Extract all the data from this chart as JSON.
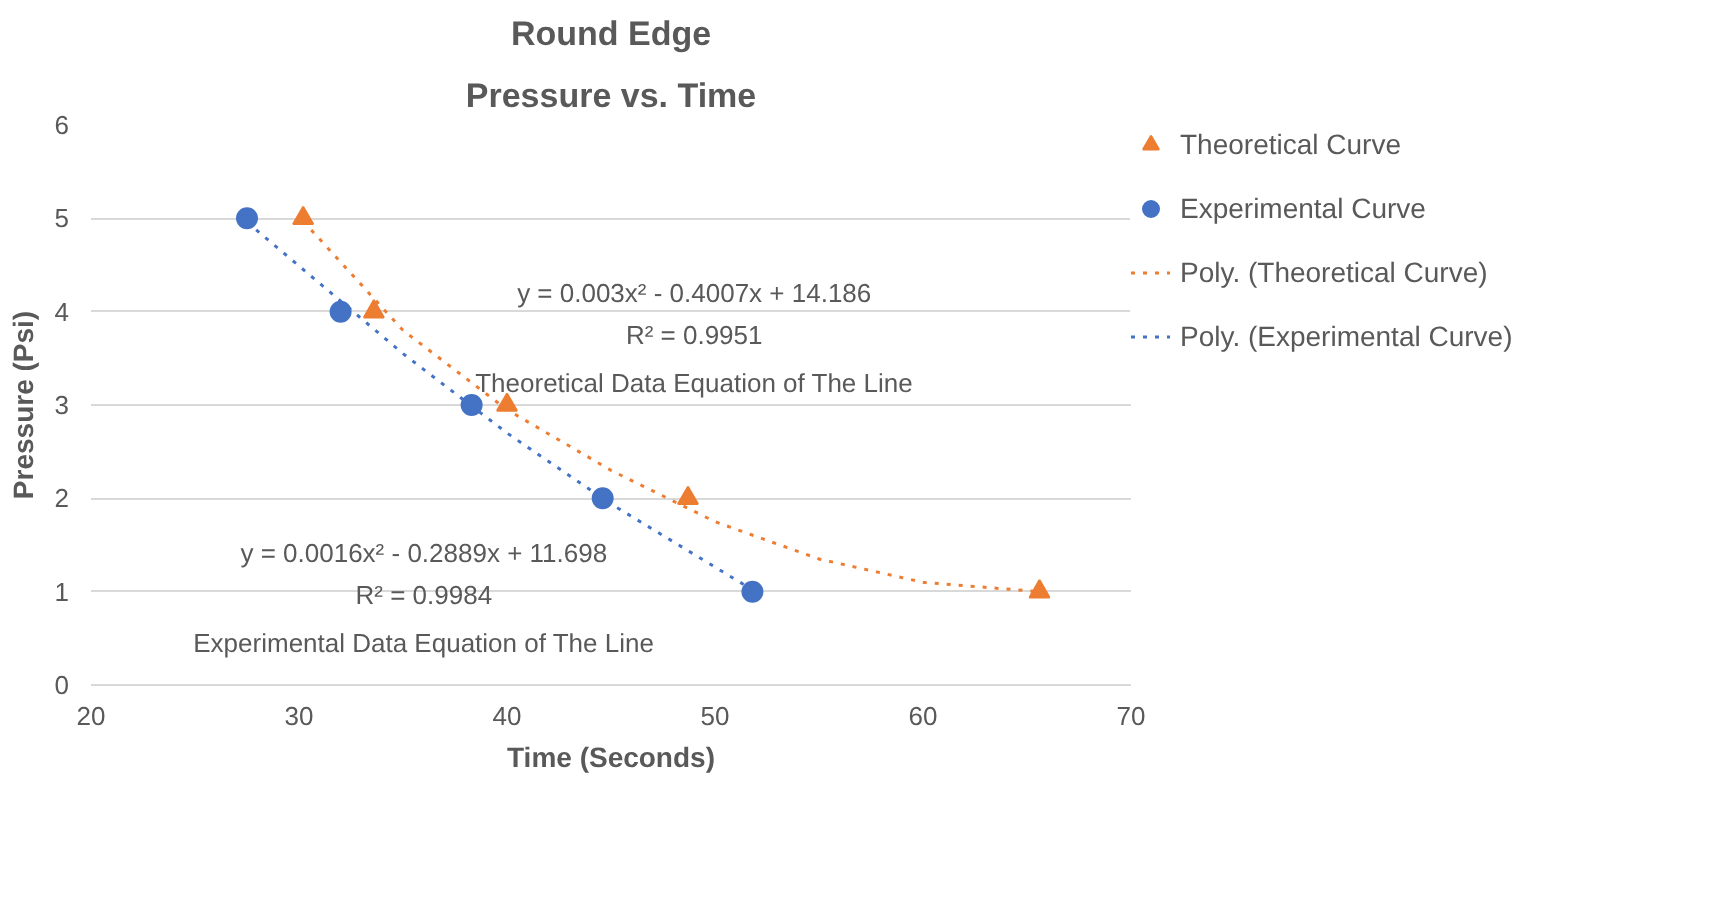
{
  "chart_data": {
    "type": "scatter",
    "title": "Round Edge",
    "subtitle": "Pressure vs. Time",
    "xlabel": "Time (Seconds)",
    "ylabel": "Pressure (Psi)",
    "xlim": [
      20,
      70
    ],
    "xticks": [
      20,
      30,
      40,
      50,
      60,
      70
    ],
    "ylim": [
      0,
      6
    ],
    "yticks": [
      0,
      1,
      2,
      3,
      4,
      5,
      6
    ],
    "grid": "y",
    "legend": "right",
    "series": [
      {
        "name": "Theoretical Curve",
        "marker": "triangle",
        "color": "#ed7d31",
        "x": [
          30.2,
          33.6,
          40,
          48.7,
          65.6
        ],
        "values": [
          5,
          4,
          3,
          2,
          1
        ]
      },
      {
        "name": "Experimental Curve",
        "marker": "circle",
        "color": "#4472c4",
        "x": [
          27.5,
          32,
          38.3,
          44.6,
          51.8
        ],
        "values": [
          5,
          4,
          3,
          2,
          1
        ]
      },
      {
        "name": "Poly. (Theoretical Curve)",
        "type": "line",
        "line_style": "dotted",
        "color": "#ed7d31",
        "x": [
          30.2,
          35,
          40,
          45,
          50,
          55,
          60,
          65.6
        ],
        "values": [
          4.97,
          3.8,
          2.95,
          2.3,
          1.75,
          1.35,
          1.1,
          1.0
        ]
      },
      {
        "name": "Poly. (Experimental Curve)",
        "type": "line",
        "line_style": "dotted",
        "color": "#4472c4",
        "x": [
          27.5,
          35,
          40,
          45,
          51.8
        ],
        "values": [
          4.96,
          3.55,
          2.7,
          1.94,
          1.02
        ]
      }
    ],
    "annotations": [
      "y = 0.003x² - 0.4007x + 14.186",
      "R² = 0.9951",
      "Theoretical Data Equation of The Line",
      "y = 0.0016x² - 0.2889x + 11.698",
      "R² = 0.9984",
      "Experimental Data Equation of The Line"
    ]
  }
}
